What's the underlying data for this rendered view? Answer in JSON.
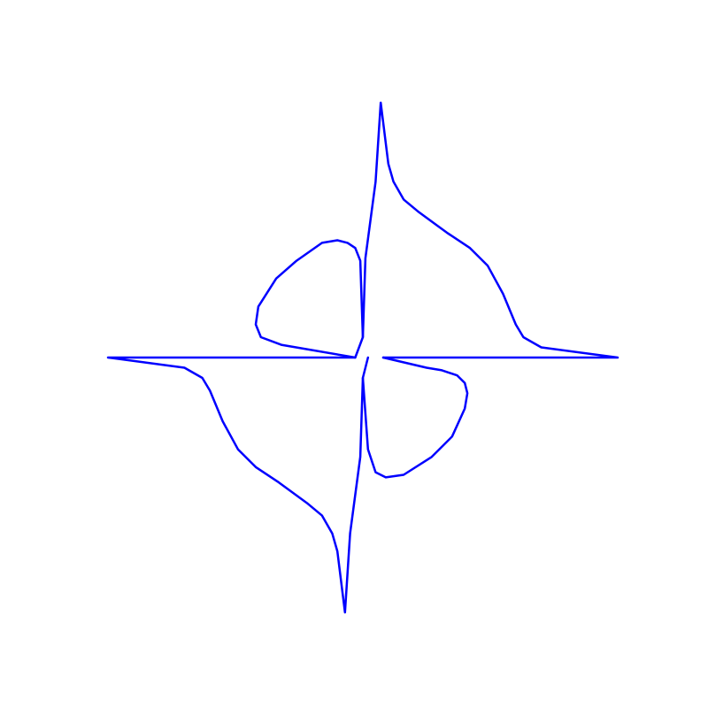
{
  "chart_data": {
    "type": "line",
    "title": "",
    "xlabel": "",
    "ylabel": "",
    "axes_visible": false,
    "grid": false,
    "legend": "none",
    "xlim": [
      -1.05,
      1.05
    ],
    "ylim": [
      -1.05,
      1.05
    ],
    "series": [
      {
        "color": "#0000ff",
        "points": [
          [
            0.08,
            0.0
          ],
          [
            1.0,
            0.0
          ],
          [
            0.7,
            -0.04
          ],
          [
            0.63,
            -0.08
          ],
          [
            0.6,
            -0.13
          ],
          [
            0.55,
            -0.25
          ],
          [
            0.49,
            -0.36
          ],
          [
            0.42,
            -0.43
          ],
          [
            0.33,
            -0.49
          ],
          [
            0.22,
            -0.57
          ],
          [
            0.16,
            -0.62
          ],
          [
            0.12,
            -0.69
          ],
          [
            0.1,
            -0.76
          ],
          [
            0.07,
            -1.0
          ],
          [
            0.05,
            -0.69
          ],
          [
            0.01,
            -0.39
          ],
          [
            0.0,
            -0.08
          ],
          [
            -0.03,
            0.0
          ],
          [
            -1.0,
            0.0
          ],
          [
            -0.7,
            0.04
          ],
          [
            -0.63,
            0.08
          ],
          [
            -0.6,
            0.13
          ],
          [
            -0.55,
            0.25
          ],
          [
            -0.49,
            0.36
          ],
          [
            -0.42,
            0.43
          ],
          [
            -0.33,
            0.49
          ],
          [
            -0.22,
            0.57
          ],
          [
            -0.16,
            0.62
          ],
          [
            -0.12,
            0.69
          ],
          [
            -0.1,
            0.76
          ],
          [
            -0.07,
            1.0
          ],
          [
            -0.05,
            0.69
          ],
          [
            -0.01,
            0.39
          ],
          [
            0.0,
            0.08
          ],
          [
            0.02,
            0.0
          ]
        ]
      },
      {
        "color": "#0000ff",
        "points": [
          [
            0.0,
            0.08
          ],
          [
            0.02,
            0.36
          ],
          [
            0.05,
            0.45
          ],
          [
            0.09,
            0.47
          ],
          [
            0.16,
            0.46
          ],
          [
            0.27,
            0.39
          ],
          [
            0.35,
            0.31
          ],
          [
            0.4,
            0.2
          ],
          [
            0.41,
            0.14
          ],
          [
            0.4,
            0.1
          ],
          [
            0.37,
            0.07
          ],
          [
            0.31,
            0.05
          ],
          [
            0.25,
            0.04
          ],
          [
            0.08,
            0.0
          ]
        ]
      },
      {
        "color": "#0000ff",
        "points": [
          [
            -0.03,
            0.0
          ],
          [
            -0.32,
            -0.05
          ],
          [
            -0.4,
            -0.08
          ],
          [
            -0.42,
            -0.13
          ],
          [
            -0.41,
            -0.2
          ],
          [
            -0.34,
            -0.31
          ],
          [
            -0.26,
            -0.38
          ],
          [
            -0.16,
            -0.45
          ],
          [
            -0.1,
            -0.46
          ],
          [
            -0.06,
            -0.45
          ],
          [
            -0.03,
            -0.43
          ],
          [
            -0.01,
            -0.38
          ],
          [
            0.0,
            -0.08
          ]
        ]
      }
    ]
  }
}
